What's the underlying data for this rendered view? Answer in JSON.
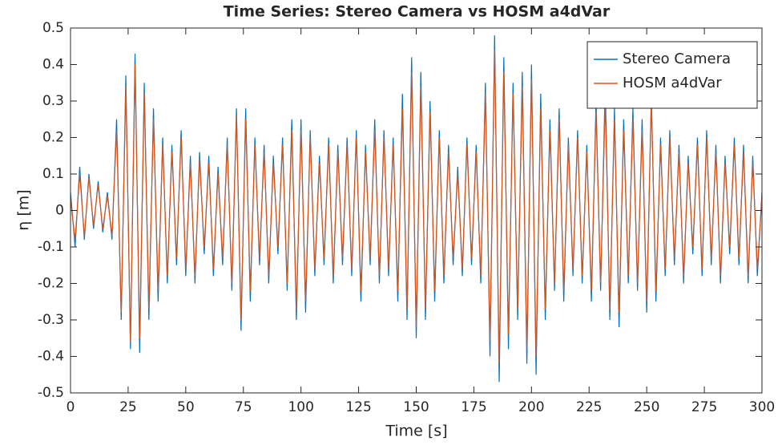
{
  "chart_data": {
    "type": "line",
    "title": "Time Series: Stereo Camera vs HOSM a4dVar",
    "x_label": "Time [s]",
    "y_label": "η [m]",
    "xlim": [
      0,
      300
    ],
    "xticks": [
      0,
      25,
      50,
      75,
      100,
      125,
      150,
      175,
      200,
      225,
      250,
      275,
      300
    ],
    "ylim": [
      -0.5,
      0.5
    ],
    "yticks": [
      -0.5,
      -0.4,
      -0.3,
      -0.2,
      -0.1,
      0,
      0.1,
      0.2,
      0.3,
      0.4,
      0.5
    ],
    "grid": false,
    "legend": "upper-right",
    "x": [
      0,
      2,
      4,
      6,
      8,
      10,
      12,
      14,
      16,
      18,
      20,
      22,
      24,
      26,
      28,
      30,
      32,
      34,
      36,
      38,
      40,
      42,
      44,
      46,
      48,
      50,
      52,
      54,
      56,
      58,
      60,
      62,
      64,
      66,
      68,
      70,
      72,
      74,
      76,
      78,
      80,
      82,
      84,
      86,
      88,
      90,
      92,
      94,
      96,
      98,
      100,
      102,
      104,
      106,
      108,
      110,
      112,
      114,
      116,
      118,
      120,
      122,
      124,
      126,
      128,
      130,
      132,
      134,
      136,
      138,
      140,
      142,
      144,
      146,
      148,
      150,
      152,
      154,
      156,
      158,
      160,
      162,
      164,
      166,
      168,
      170,
      172,
      174,
      176,
      178,
      180,
      182,
      184,
      186,
      188,
      190,
      192,
      194,
      196,
      198,
      200,
      202,
      204,
      206,
      208,
      210,
      212,
      214,
      216,
      218,
      220,
      222,
      224,
      226,
      228,
      230,
      232,
      234,
      236,
      238,
      240,
      242,
      244,
      246,
      248,
      250,
      252,
      254,
      256,
      258,
      260,
      262,
      264,
      266,
      268,
      270,
      272,
      274,
      276,
      278,
      280,
      282,
      284,
      286,
      288,
      290,
      292,
      294,
      296,
      298,
      300
    ],
    "series": [
      {
        "name": "Stereo Camera",
        "color": "#0072BD",
        "values": [
          0.05,
          -0.1,
          0.12,
          -0.08,
          0.1,
          -0.05,
          0.08,
          -0.06,
          0.05,
          -0.08,
          0.25,
          -0.3,
          0.37,
          -0.38,
          0.43,
          -0.39,
          0.35,
          -0.3,
          0.28,
          -0.25,
          0.2,
          -0.2,
          0.18,
          -0.15,
          0.22,
          -0.18,
          0.15,
          -0.2,
          0.16,
          -0.12,
          0.15,
          -0.18,
          0.12,
          -0.15,
          0.2,
          -0.22,
          0.28,
          -0.33,
          0.28,
          -0.25,
          0.2,
          -0.15,
          0.18,
          -0.2,
          0.15,
          -0.12,
          0.2,
          -0.22,
          0.25,
          -0.3,
          0.25,
          -0.28,
          0.22,
          -0.18,
          0.15,
          -0.15,
          0.2,
          -0.2,
          0.18,
          -0.15,
          0.2,
          -0.18,
          0.22,
          -0.25,
          0.18,
          -0.15,
          0.25,
          -0.2,
          0.22,
          -0.18,
          0.2,
          -0.25,
          0.32,
          -0.3,
          0.42,
          -0.35,
          0.38,
          -0.3,
          0.3,
          -0.25,
          0.22,
          -0.2,
          0.18,
          -0.15,
          0.12,
          -0.18,
          0.2,
          -0.15,
          0.18,
          -0.2,
          0.35,
          -0.4,
          0.48,
          -0.47,
          0.42,
          -0.38,
          0.35,
          -0.3,
          0.38,
          -0.42,
          0.4,
          -0.45,
          0.32,
          -0.3,
          0.25,
          -0.22,
          0.28,
          -0.25,
          0.2,
          -0.18,
          0.22,
          -0.2,
          0.18,
          -0.25,
          0.3,
          -0.22,
          0.35,
          -0.3,
          0.28,
          -0.32,
          0.25,
          -0.2,
          0.28,
          -0.22,
          0.25,
          -0.28,
          0.32,
          -0.25,
          0.2,
          -0.18,
          0.22,
          -0.15,
          0.18,
          -0.2,
          0.15,
          -0.12,
          0.2,
          -0.18,
          0.22,
          -0.15,
          0.18,
          -0.2,
          0.15,
          -0.12,
          0.2,
          -0.15,
          0.18,
          -0.2,
          0.15,
          -0.18,
          0.05
        ]
      },
      {
        "name": "HOSM a4dVar",
        "color": "#D95319",
        "values": [
          0.03,
          -0.08,
          0.1,
          -0.07,
          0.09,
          -0.04,
          0.07,
          -0.05,
          0.04,
          -0.07,
          0.22,
          -0.28,
          0.34,
          -0.36,
          0.4,
          -0.35,
          0.32,
          -0.27,
          0.25,
          -0.22,
          0.18,
          -0.18,
          0.16,
          -0.13,
          0.2,
          -0.16,
          0.13,
          -0.18,
          0.14,
          -0.1,
          0.13,
          -0.16,
          0.1,
          -0.13,
          0.18,
          -0.2,
          0.26,
          -0.3,
          0.25,
          -0.22,
          0.18,
          -0.13,
          0.16,
          -0.18,
          0.13,
          -0.1,
          0.18,
          -0.2,
          0.22,
          -0.27,
          0.22,
          -0.25,
          0.2,
          -0.16,
          0.13,
          -0.13,
          0.18,
          -0.18,
          0.16,
          -0.13,
          0.18,
          -0.16,
          0.2,
          -0.22,
          0.16,
          -0.13,
          0.22,
          -0.18,
          0.2,
          -0.16,
          0.18,
          -0.22,
          0.28,
          -0.27,
          0.38,
          -0.32,
          0.34,
          -0.27,
          0.27,
          -0.22,
          0.2,
          -0.18,
          0.16,
          -0.13,
          0.1,
          -0.16,
          0.18,
          -0.13,
          0.16,
          -0.18,
          0.32,
          -0.36,
          0.44,
          -0.42,
          0.38,
          -0.34,
          0.32,
          -0.27,
          0.34,
          -0.38,
          0.36,
          -0.4,
          0.28,
          -0.27,
          0.22,
          -0.2,
          0.25,
          -0.22,
          0.18,
          -0.16,
          0.2,
          -0.18,
          0.16,
          -0.22,
          0.27,
          -0.2,
          0.3,
          -0.27,
          0.25,
          -0.28,
          0.22,
          -0.18,
          0.25,
          -0.2,
          0.22,
          -0.25,
          0.3,
          -0.22,
          0.18,
          -0.16,
          0.2,
          -0.13,
          0.16,
          -0.18,
          0.13,
          -0.1,
          0.18,
          -0.16,
          0.2,
          -0.13,
          0.16,
          -0.18,
          0.13,
          -0.1,
          0.18,
          -0.13,
          0.16,
          -0.18,
          0.13,
          -0.16,
          0.04
        ]
      }
    ]
  }
}
